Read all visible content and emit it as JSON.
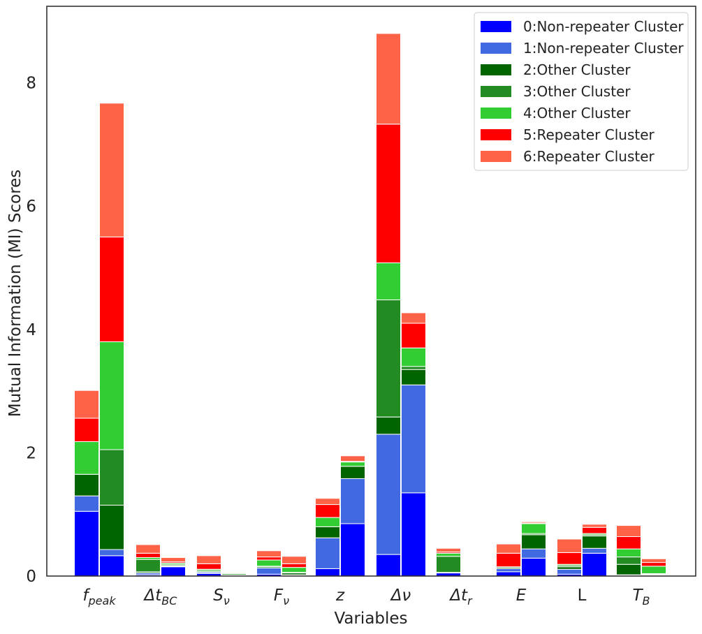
{
  "chart_data": {
    "type": "bar",
    "stacked": true,
    "grouped_pairs": true,
    "xlabel": "Variables",
    "ylabel": "Mutual Information (MI) Scores",
    "ylim": [
      0,
      9.25
    ],
    "yticks": [
      0,
      2,
      4,
      6,
      8
    ],
    "grid": false,
    "legend_position": "top-right",
    "categories": [
      {
        "label": "f_peak",
        "base": "f",
        "sub": "peak",
        "italic": true
      },
      {
        "label": "Δt_BC",
        "base": "Δt",
        "sub": "BC",
        "italic": true
      },
      {
        "label": "S_ν",
        "base": "S",
        "sub": "ν",
        "italic": true
      },
      {
        "label": "F_ν",
        "base": "F",
        "sub": "ν",
        "italic": true
      },
      {
        "label": "z",
        "base": "z",
        "sub": "",
        "italic": true
      },
      {
        "label": "Δν",
        "base": "Δν",
        "sub": "",
        "italic": true
      },
      {
        "label": "Δt_r",
        "base": "Δt",
        "sub": "r",
        "italic": true
      },
      {
        "label": "E",
        "base": "E",
        "sub": "",
        "italic": true
      },
      {
        "label": "L",
        "base": "L",
        "sub": "",
        "italic": false
      },
      {
        "label": "T_B",
        "base": "T",
        "sub": "B",
        "italic": true
      }
    ],
    "series": [
      {
        "name": "0:Non-repeater Cluster",
        "color": "#0000ff"
      },
      {
        "name": "1:Non-repeater Cluster",
        "color": "#4169e1"
      },
      {
        "name": "2:Other Cluster",
        "color": "#006400"
      },
      {
        "name": "3:Other Cluster",
        "color": "#228b22"
      },
      {
        "name": "4:Other Cluster",
        "color": "#32cd32"
      },
      {
        "name": "5:Repeater Cluster",
        "color": "#ff0000"
      },
      {
        "name": "6:Repeater Cluster",
        "color": "#ff6347"
      }
    ],
    "bars": [
      {
        "category": "f_peak",
        "position": "left",
        "values": [
          1.05,
          0.25,
          0.35,
          0.0,
          0.53,
          0.38,
          0.45
        ]
      },
      {
        "category": "f_peak",
        "position": "right",
        "values": [
          0.33,
          0.1,
          0.72,
          0.9,
          1.75,
          1.7,
          2.17
        ]
      },
      {
        "category": "Δt_BC",
        "position": "left",
        "values": [
          0.02,
          0.03,
          0.02,
          0.2,
          0.03,
          0.07,
          0.14
        ]
      },
      {
        "category": "Δt_BC",
        "position": "right",
        "values": [
          0.15,
          0.01,
          0.01,
          0.02,
          0.02,
          0.02,
          0.07
        ]
      },
      {
        "category": "S_ν",
        "position": "left",
        "values": [
          0.04,
          0.02,
          0.01,
          0.02,
          0.02,
          0.09,
          0.13
        ]
      },
      {
        "category": "S_ν",
        "position": "right",
        "values": [
          0.01,
          0.0,
          0.01,
          0.02,
          0.01,
          0.0,
          0.0
        ]
      },
      {
        "category": "F_ν",
        "position": "left",
        "values": [
          0.03,
          0.1,
          0.02,
          0.01,
          0.1,
          0.05,
          0.1
        ]
      },
      {
        "category": "F_ν",
        "position": "right",
        "values": [
          0.01,
          0.01,
          0.03,
          0.01,
          0.08,
          0.06,
          0.12
        ]
      },
      {
        "category": "z",
        "position": "left",
        "values": [
          0.12,
          0.5,
          0.18,
          0.0,
          0.15,
          0.21,
          0.1
        ]
      },
      {
        "category": "z",
        "position": "right",
        "values": [
          0.85,
          0.73,
          0.2,
          0.0,
          0.07,
          0.01,
          0.09
        ]
      },
      {
        "category": "Δν",
        "position": "left",
        "values": [
          0.35,
          1.95,
          0.28,
          1.9,
          0.6,
          2.25,
          1.47
        ]
      },
      {
        "category": "Δν",
        "position": "right",
        "values": [
          1.35,
          1.75,
          0.25,
          0.05,
          0.3,
          0.4,
          0.17
        ]
      },
      {
        "category": "Δt_r",
        "position": "left",
        "values": [
          0.05,
          0.0,
          0.01,
          0.26,
          0.05,
          0.02,
          0.06
        ]
      },
      {
        "category": "Δt_r",
        "position": "right",
        "values": [
          0.01,
          0.0,
          0.0,
          0.0,
          0.01,
          0.01,
          0.01
        ]
      },
      {
        "category": "E",
        "position": "left",
        "values": [
          0.07,
          0.05,
          0.02,
          0.0,
          0.01,
          0.22,
          0.15
        ]
      },
      {
        "category": "E",
        "position": "right",
        "values": [
          0.29,
          0.15,
          0.23,
          0.02,
          0.16,
          0.01,
          0.02
        ]
      },
      {
        "category": "L",
        "position": "left",
        "values": [
          0.03,
          0.08,
          0.04,
          0.02,
          0.02,
          0.19,
          0.22
        ]
      },
      {
        "category": "L",
        "position": "right",
        "values": [
          0.37,
          0.08,
          0.2,
          0.02,
          0.02,
          0.1,
          0.05
        ]
      },
      {
        "category": "T_B",
        "position": "left",
        "values": [
          0.01,
          0.01,
          0.17,
          0.12,
          0.13,
          0.2,
          0.18
        ]
      },
      {
        "category": "T_B",
        "position": "right",
        "values": [
          0.01,
          0.01,
          0.01,
          0.01,
          0.12,
          0.06,
          0.06
        ]
      }
    ]
  }
}
